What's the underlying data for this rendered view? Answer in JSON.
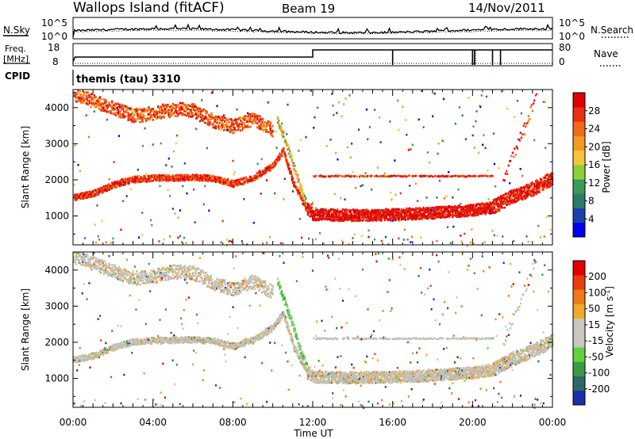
{
  "header": {
    "station": "Wallops Island (fitACF)",
    "beam": "Beam 19",
    "date": "14/Nov/2011"
  },
  "top_panels": {
    "nsky_label": "N.Sky",
    "nsearch_label": "N.Search",
    "noise_ticks_left": [
      "10^5",
      "10^0"
    ],
    "noise_ticks_right": [
      "10^5",
      "10^0"
    ],
    "freq_label": "Freq.",
    "freq_unit": "[MHz]",
    "freq_ticks": [
      "18",
      "8"
    ],
    "nave_label": "Nave",
    "nave_ticks": [
      "80",
      "0"
    ],
    "cpid_label": "CPID",
    "cpid_value": "themis (tau) 3310"
  },
  "colors": {
    "power_scale": [
      "#0000ee",
      "#1f3fa8",
      "#2e7a6a",
      "#3c9a5a",
      "#8ccf3a",
      "#f7c53a",
      "#f29a22",
      "#f06a18",
      "#e83010",
      "#e00000"
    ],
    "velocity_scale": [
      "#1c2fa8",
      "#2a6a66",
      "#3c9a46",
      "#62d040",
      "#c8c8c0",
      "#c8c8c0",
      "#f2a82a",
      "#f07a18",
      "#e83e10",
      "#e00000"
    ],
    "grey_scatter": "#c0c0b8"
  },
  "chart_data": [
    {
      "type": "heatmap",
      "panel": "power",
      "ylabel": "Slant Range [km]",
      "ylim": [
        200,
        4500
      ],
      "yticks": [
        1000,
        2000,
        3000,
        4000
      ],
      "xlim": [
        0,
        24
      ],
      "colorbar_label": "Power [dB]",
      "colorbar_ticks": [
        "4",
        "8",
        "12",
        "16",
        "20",
        "24",
        "28"
      ],
      "color_range": [
        0,
        30
      ],
      "echo_bands": [
        {
          "name": "lower",
          "points": [
            [
              0,
              1500
            ],
            [
              1,
              1620
            ],
            [
              2,
              1850
            ],
            [
              3,
              2000
            ],
            [
              4,
              2040
            ],
            [
              6,
              2060
            ],
            [
              7,
              2030
            ],
            [
              8,
              1880
            ],
            [
              9,
              2050
            ],
            [
              10,
              2400
            ],
            [
              10.5,
              2800
            ],
            [
              11,
              1900
            ],
            [
              11.7,
              1150
            ],
            [
              12,
              1000
            ],
            [
              14,
              980
            ],
            [
              16,
              1000
            ],
            [
              18,
              1050
            ],
            [
              20,
              1120
            ],
            [
              21,
              1200
            ],
            [
              22,
              1500
            ],
            [
              23,
              1700
            ],
            [
              24,
              2000
            ]
          ]
        },
        {
          "name": "upper",
          "points": [
            [
              0,
              4400
            ],
            [
              1,
              4200
            ],
            [
              2,
              4000
            ],
            [
              3,
              3800
            ],
            [
              4,
              3850
            ],
            [
              5,
              3980
            ],
            [
              6,
              3950
            ],
            [
              7,
              3650
            ],
            [
              8,
              3500
            ],
            [
              9,
              3700
            ],
            [
              10,
              3400
            ]
          ]
        },
        {
          "name": "oblique",
          "points": [
            [
              10.2,
              3700
            ],
            [
              10.8,
              2800
            ],
            [
              11.3,
              1900
            ],
            [
              11.7,
              1300
            ]
          ]
        },
        {
          "name": "flat",
          "points": [
            [
              12,
              2130
            ],
            [
              21,
              2130
            ]
          ]
        }
      ]
    },
    {
      "type": "heatmap",
      "panel": "velocity",
      "ylabel": "Slant Range [km]",
      "ylim": [
        200,
        4500
      ],
      "yticks": [
        1000,
        2000,
        3000,
        4000
      ],
      "xlim": [
        0,
        24
      ],
      "colorbar_label": "Velocity [m s^-1]",
      "colorbar_ticks": [
        "-200",
        "-100",
        "-50",
        "-15",
        "15",
        "50",
        "100",
        "200"
      ],
      "color_range": [
        -250,
        250
      ],
      "echo_bands": [
        {
          "name": "lower",
          "points": [
            [
              0,
              1500
            ],
            [
              1,
              1620
            ],
            [
              2,
              1850
            ],
            [
              3,
              2000
            ],
            [
              4,
              2040
            ],
            [
              6,
              2060
            ],
            [
              7,
              2030
            ],
            [
              8,
              1880
            ],
            [
              9,
              2050
            ],
            [
              10,
              2400
            ],
            [
              10.5,
              2800
            ],
            [
              11,
              1900
            ],
            [
              11.7,
              1150
            ],
            [
              12,
              1000
            ],
            [
              14,
              980
            ],
            [
              16,
              1000
            ],
            [
              18,
              1050
            ],
            [
              20,
              1120
            ],
            [
              21,
              1200
            ],
            [
              22,
              1500
            ],
            [
              23,
              1700
            ],
            [
              24,
              2000
            ]
          ]
        },
        {
          "name": "upper",
          "points": [
            [
              0,
              4400
            ],
            [
              1,
              4200
            ],
            [
              2,
              4000
            ],
            [
              3,
              3800
            ],
            [
              4,
              3850
            ],
            [
              5,
              3980
            ],
            [
              6,
              3950
            ],
            [
              7,
              3650
            ],
            [
              8,
              3500
            ],
            [
              9,
              3700
            ],
            [
              10,
              3400
            ]
          ]
        },
        {
          "name": "oblique",
          "points": [
            [
              10.2,
              3700
            ],
            [
              10.8,
              2800
            ],
            [
              11.3,
              1900
            ],
            [
              11.7,
              1300
            ]
          ]
        },
        {
          "name": "flat",
          "points": [
            [
              12,
              2130
            ],
            [
              21,
              2130
            ]
          ]
        }
      ]
    }
  ],
  "xaxis": {
    "label": "Time UT",
    "ticks": [
      "00:00",
      "04:00",
      "08:00",
      "12:00",
      "16:00",
      "20:00",
      "00:00"
    ]
  }
}
